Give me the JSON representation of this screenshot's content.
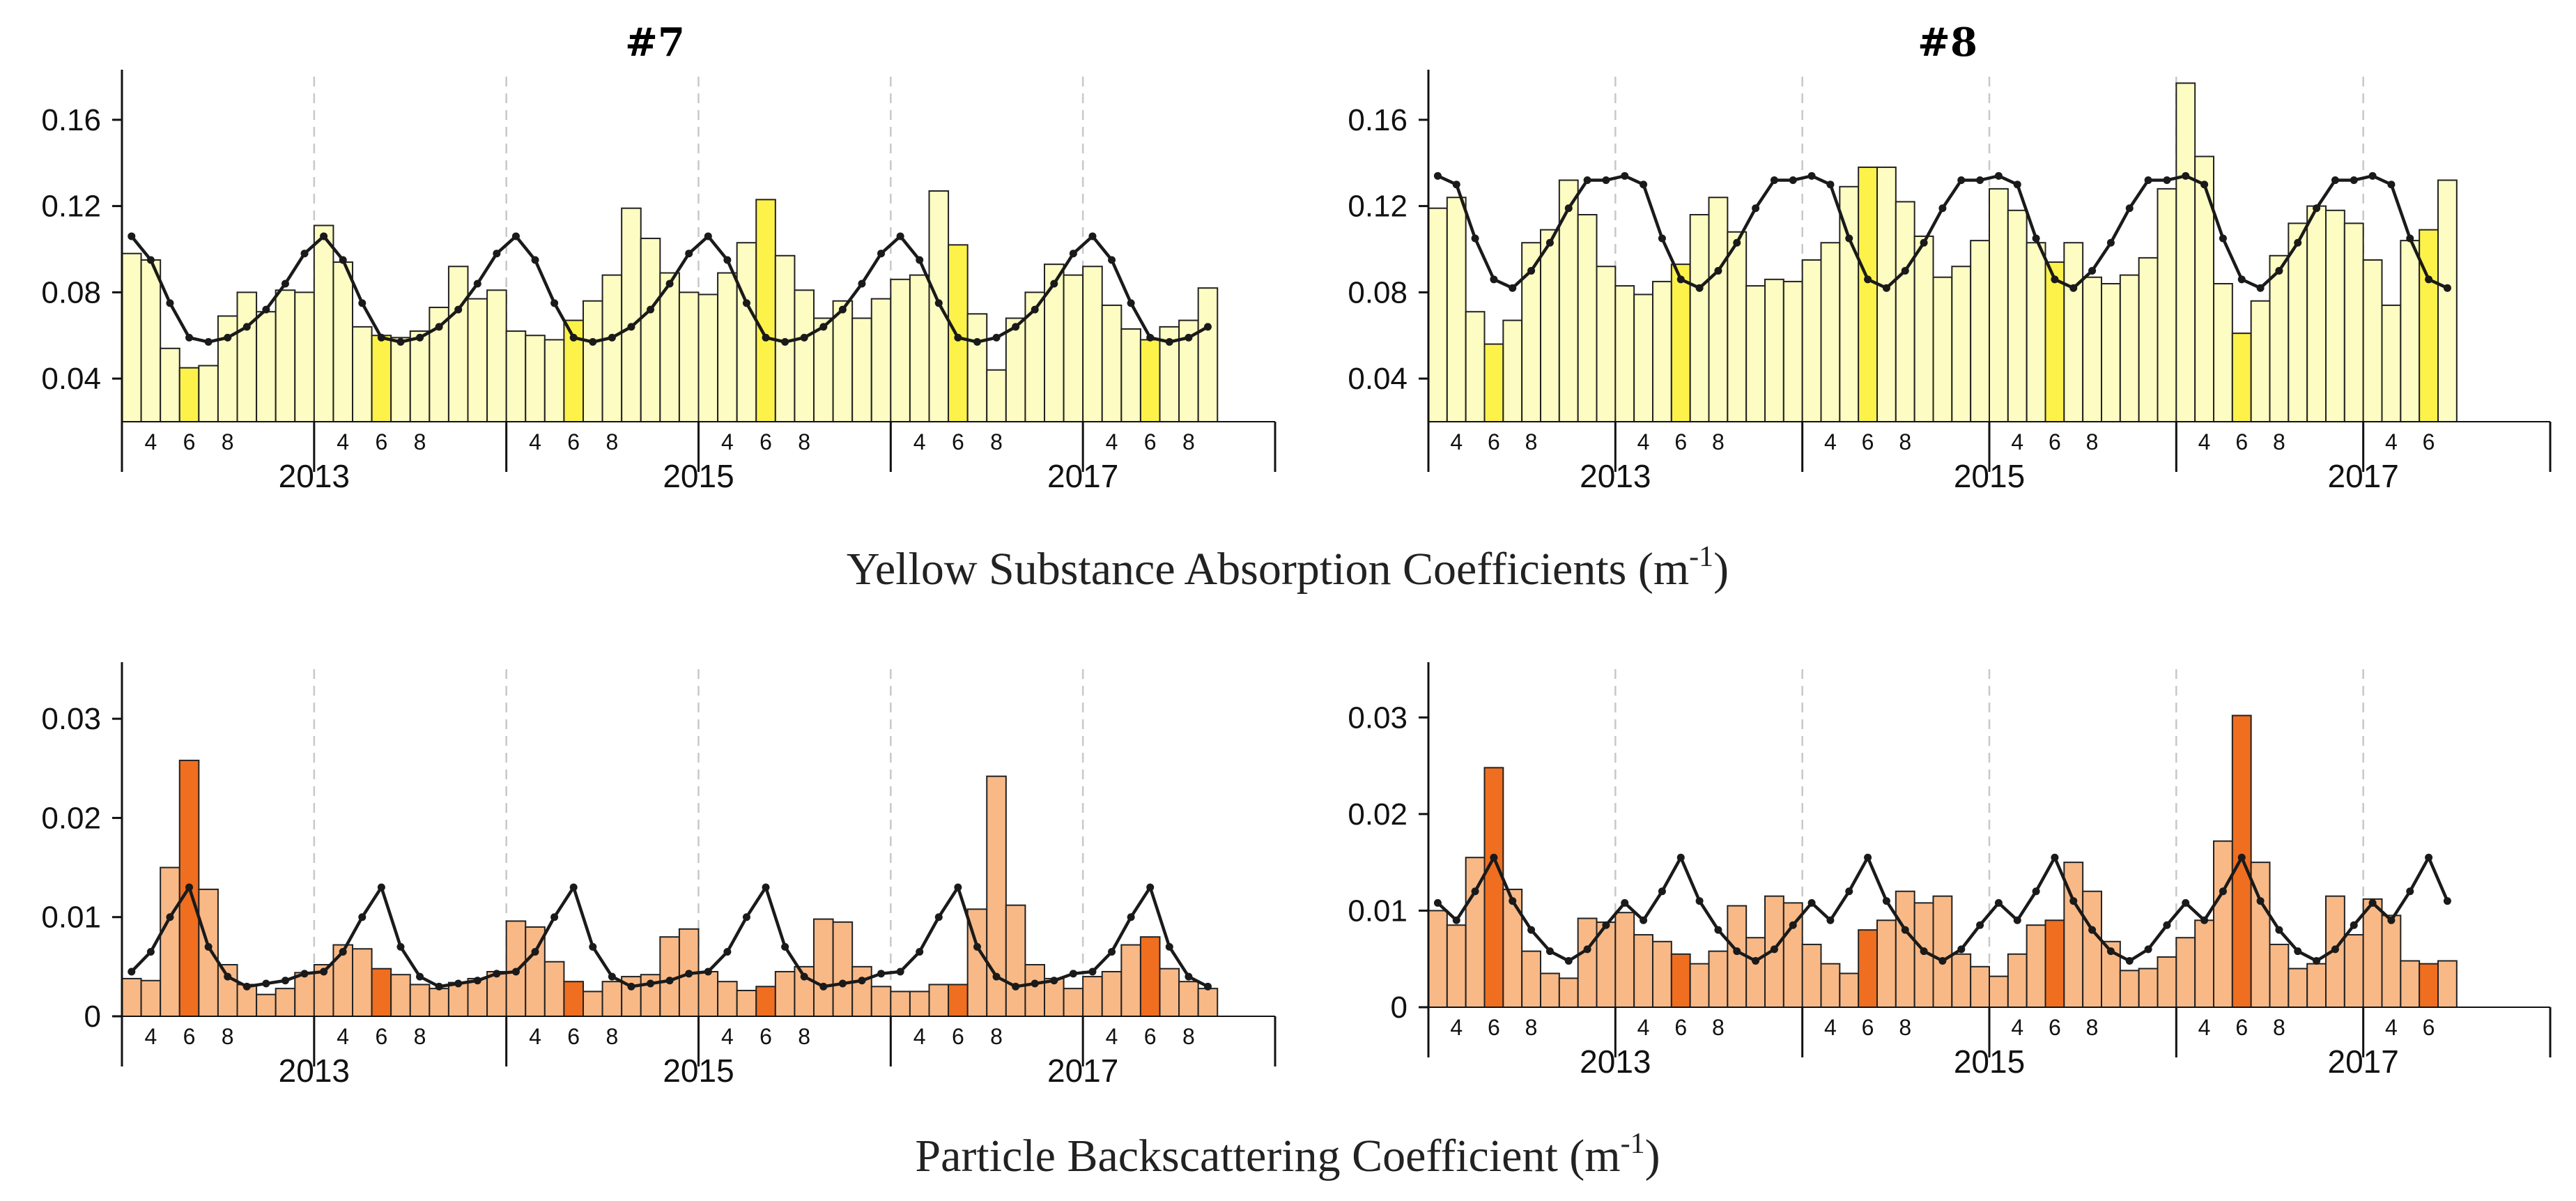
{
  "colors": {
    "ys_light": "#fdfcc2",
    "ys_highlight": "#fdf24a",
    "bb_light": "#f8b987",
    "bb_highlight": "#f06e1f",
    "line": "#1a1a1a",
    "grid": "#c8c8c8"
  },
  "figure": {
    "ys_caption_main": "Yellow Substance Absorption Coefficients (m",
    "ys_caption_exp": "-1",
    "ys_caption_end": ")",
    "bb_caption_main": "Particle Backscattering Coefficient (m",
    "bb_caption_exp": "-1",
    "bb_caption_end": ")"
  },
  "chart_data": [
    {
      "id": "ys7",
      "type": "bar",
      "title": "#7",
      "ylim": [
        0.02,
        0.18
      ],
      "yticks": [
        0.04,
        0.08,
        0.12,
        0.16
      ],
      "ytick_labels": [
        "0.04",
        "0.08",
        "0.12",
        "0.16"
      ],
      "months": [
        3,
        4,
        5,
        6,
        7,
        8,
        9,
        10,
        11,
        12
      ],
      "month_tick_labels": [
        "4",
        "6",
        "8"
      ],
      "year_labels": [
        "2013",
        "2015",
        "2017"
      ],
      "highlight_month": 6,
      "values": [
        0.098,
        0.095,
        0.054,
        0.045,
        0.046,
        0.069,
        0.08,
        0.071,
        0.081,
        0.08,
        0.111,
        0.094,
        0.064,
        0.06,
        0.059,
        0.062,
        0.073,
        0.092,
        0.077,
        0.081,
        0.062,
        0.06,
        0.058,
        0.067,
        0.076,
        0.088,
        0.119,
        0.105,
        0.089,
        0.08,
        0.079,
        0.089,
        0.103,
        0.123,
        0.097,
        0.081,
        0.068,
        0.076,
        0.068,
        0.077,
        0.086,
        0.088,
        0.127,
        0.102,
        0.07,
        0.044,
        0.068,
        0.08,
        0.093,
        0.088,
        0.092,
        0.074,
        0.063,
        0.058,
        0.064,
        0.067,
        0.082
      ],
      "climatology": [
        0.106,
        0.095,
        0.075,
        0.059,
        0.057,
        0.059,
        0.064,
        0.072,
        0.084,
        0.098
      ]
    },
    {
      "id": "ys8",
      "type": "bar",
      "title": "#8",
      "ylim": [
        0.02,
        0.18
      ],
      "yticks": [
        0.04,
        0.08,
        0.12,
        0.16
      ],
      "ytick_labels": [
        "0.04",
        "0.08",
        "0.12",
        "0.16"
      ],
      "months": [
        3,
        4,
        5,
        6,
        7,
        8,
        9,
        10,
        11,
        12
      ],
      "month_tick_labels": [
        "4",
        "6",
        "8"
      ],
      "year_labels": [
        "2013",
        "2015",
        "2017"
      ],
      "highlight_month": 6,
      "values": [
        0.119,
        0.124,
        0.071,
        0.056,
        0.067,
        0.103,
        0.109,
        0.132,
        0.116,
        0.092,
        0.083,
        0.079,
        0.085,
        0.093,
        0.116,
        0.124,
        0.108,
        0.083,
        0.086,
        0.085,
        0.095,
        0.103,
        0.129,
        0.138,
        0.138,
        0.122,
        0.106,
        0.087,
        0.092,
        0.104,
        0.128,
        0.118,
        0.103,
        0.094,
        0.103,
        0.087,
        0.084,
        0.088,
        0.096,
        0.128,
        0.177,
        0.143,
        0.084,
        0.061,
        0.076,
        0.097,
        0.112,
        0.12,
        0.118,
        0.112,
        0.095,
        0.074,
        0.104,
        0.109,
        0.132
      ],
      "climatology": [
        0.134,
        0.13,
        0.105,
        0.086,
        0.082,
        0.09,
        0.103,
        0.119,
        0.132,
        0.132
      ]
    },
    {
      "id": "bb7",
      "type": "bar",
      "title": "",
      "ylim": [
        0,
        0.035
      ],
      "yticks": [
        0,
        0.01,
        0.02,
        0.03
      ],
      "ytick_labels": [
        "0",
        "0.01",
        "0.02",
        "0.03"
      ],
      "months": [
        3,
        4,
        5,
        6,
        7,
        8,
        9,
        10,
        11,
        12
      ],
      "month_tick_labels": [
        "4",
        "6",
        "8"
      ],
      "year_labels": [
        "2013",
        "2015",
        "2017"
      ],
      "highlight_month": 6,
      "values": [
        0.0038,
        0.0036,
        0.015,
        0.0258,
        0.0128,
        0.0052,
        0.0032,
        0.0022,
        0.0028,
        0.0044,
        0.0052,
        0.0072,
        0.0068,
        0.0048,
        0.0042,
        0.0032,
        0.0028,
        0.0034,
        0.0038,
        0.0045,
        0.0096,
        0.009,
        0.0055,
        0.0035,
        0.0025,
        0.0035,
        0.004,
        0.0042,
        0.008,
        0.0088,
        0.0045,
        0.0035,
        0.0026,
        0.003,
        0.0045,
        0.005,
        0.0098,
        0.0095,
        0.005,
        0.003,
        0.0025,
        0.0025,
        0.0032,
        0.0032,
        0.0108,
        0.0242,
        0.0112,
        0.0052,
        0.0038,
        0.0028,
        0.004,
        0.0045,
        0.0072,
        0.008,
        0.0048,
        0.0035,
        0.0028
      ],
      "climatology": [
        0.0045,
        0.0065,
        0.01,
        0.013,
        0.007,
        0.004,
        0.003,
        0.0033,
        0.0036,
        0.0043
      ]
    },
    {
      "id": "bb8",
      "type": "bar",
      "title": "",
      "ylim": [
        0,
        0.035
      ],
      "yticks": [
        0,
        0.01,
        0.02,
        0.03
      ],
      "ytick_labels": [
        "0",
        "0.01",
        "0.02",
        "0.03"
      ],
      "months": [
        3,
        4,
        5,
        6,
        7,
        8,
        9,
        10,
        11,
        12
      ],
      "month_tick_labels": [
        "4",
        "6",
        "8"
      ],
      "year_labels": [
        "2013",
        "2015",
        "2017"
      ],
      "highlight_month": 6,
      "values": [
        0.01,
        0.0085,
        0.0155,
        0.0248,
        0.0122,
        0.0058,
        0.0035,
        0.003,
        0.0092,
        0.0088,
        0.0098,
        0.0075,
        0.0068,
        0.0055,
        0.0045,
        0.0058,
        0.0105,
        0.0072,
        0.0115,
        0.0108,
        0.0065,
        0.0045,
        0.0035,
        0.008,
        0.009,
        0.012,
        0.0108,
        0.0115,
        0.0055,
        0.0042,
        0.0032,
        0.0055,
        0.0085,
        0.009,
        0.015,
        0.012,
        0.0068,
        0.0038,
        0.004,
        0.0052,
        0.0072,
        0.009,
        0.0172,
        0.0302,
        0.015,
        0.0065,
        0.004,
        0.0045,
        0.0115,
        0.0075,
        0.0112,
        0.0095,
        0.0048,
        0.0045,
        0.0048
      ],
      "climatology": [
        0.0108,
        0.009,
        0.012,
        0.0155,
        0.011,
        0.008,
        0.0058,
        0.0048,
        0.006,
        0.0085
      ]
    }
  ]
}
